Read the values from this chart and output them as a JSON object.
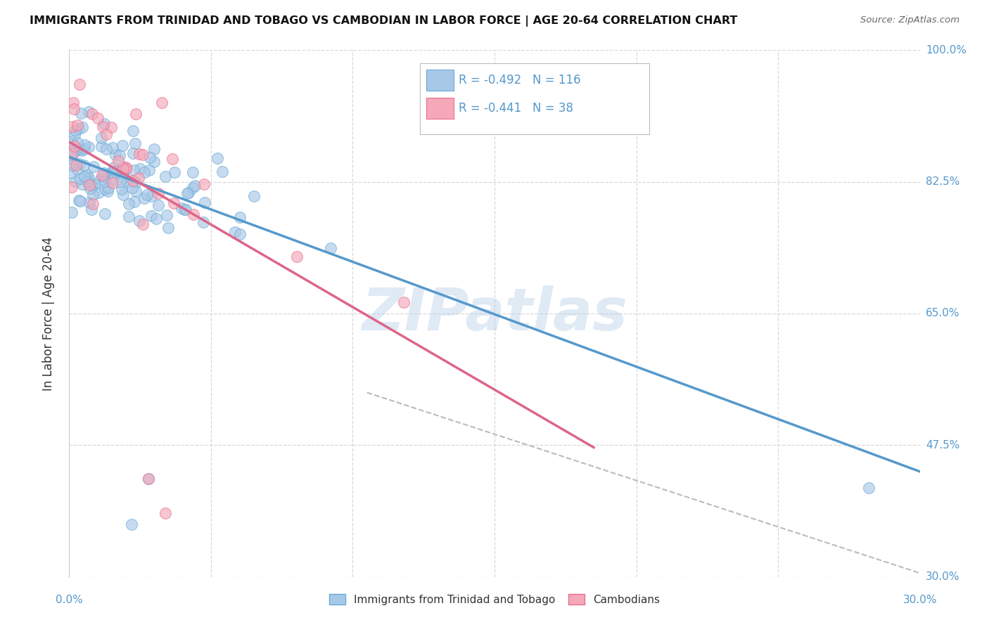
{
  "title": "IMMIGRANTS FROM TRINIDAD AND TOBAGO VS CAMBODIAN IN LABOR FORCE | AGE 20-64 CORRELATION CHART",
  "source": "Source: ZipAtlas.com",
  "ylabel": "In Labor Force | Age 20-64",
  "background_color": "#ffffff",
  "grid_color": "#d8d8d8",
  "watermark": "ZIPatlas",
  "blue_R": -0.492,
  "blue_N": 116,
  "pink_R": -0.441,
  "pink_N": 38,
  "blue_fill_color": "#a8c8e8",
  "pink_fill_color": "#f4a8b8",
  "blue_edge_color": "#6aaad4",
  "pink_edge_color": "#e87090",
  "blue_line_color": "#5599cc",
  "pink_line_color": "#dd6688",
  "dashed_line_color": "#bbbbbb",
  "right_label_color": "#5599cc",
  "xlim": [
    0.0,
    0.3
  ],
  "ylim": [
    0.3,
    1.0
  ],
  "ytick_positions": [
    0.3,
    0.475,
    0.65,
    0.825,
    1.0
  ],
  "ytick_labels": [
    "30.0%",
    "47.5%",
    "65.0%",
    "82.5%",
    "100.0%"
  ],
  "blue_line_x0": 0.0,
  "blue_line_x1": 0.3,
  "blue_line_y0": 0.858,
  "blue_line_y1": 0.44,
  "pink_line_x0": 0.0,
  "pink_line_x1": 0.185,
  "pink_line_y0": 0.878,
  "pink_line_y1": 0.472,
  "dash_line_x0": 0.105,
  "dash_line_x1": 0.3,
  "dash_line_y0": 0.545,
  "dash_line_y1": 0.305,
  "legend_label_blue": "Immigrants from Trinidad and Tobago",
  "legend_label_pink": "Cambodians"
}
